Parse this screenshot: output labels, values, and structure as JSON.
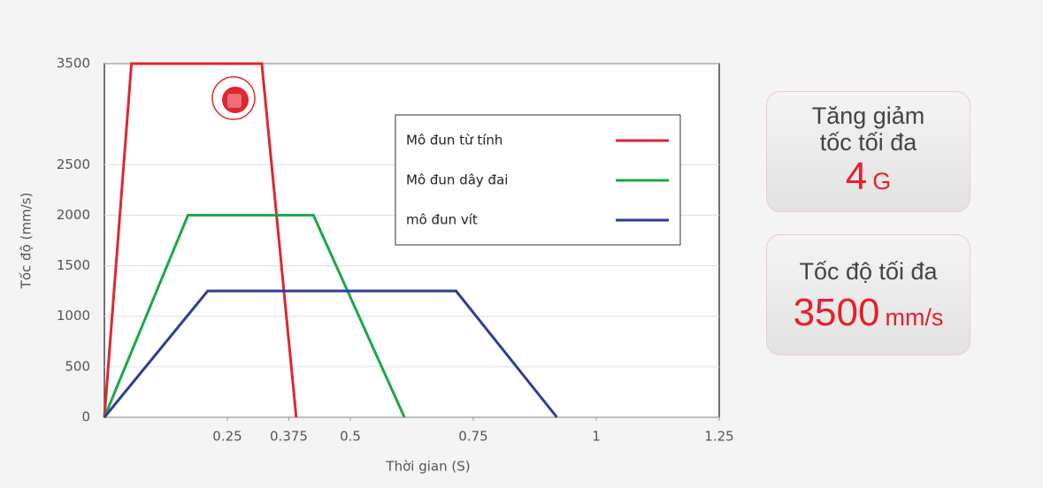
{
  "chart_data": {
    "type": "line",
    "y_label": "Tốc độ (mm/s)",
    "x_label": "Thời gian (S)",
    "xlim": [
      0,
      1.25
    ],
    "xticks": [
      0.25,
      0.375,
      0.5,
      0.75,
      1,
      1.25
    ],
    "ylim": [
      0,
      3500
    ],
    "yticks": [
      0,
      500,
      1000,
      1500,
      2000,
      2500,
      3500
    ],
    "grid": true,
    "series": [
      {
        "name": "Mô đun từ tính",
        "color": "#e0262e",
        "x": [
          0,
          0.055,
          0.32,
          0.39
        ],
        "values": [
          0,
          3500,
          3500,
          0
        ]
      },
      {
        "name": "Mô đun dây đai",
        "color": "#1ea64a",
        "x": [
          0,
          0.17,
          0.425,
          0.61
        ],
        "values": [
          0,
          2000,
          2000,
          0
        ]
      },
      {
        "name": "mô đun vít",
        "color": "#2e3d96",
        "x": [
          0,
          0.21,
          0.715,
          0.92
        ],
        "values": [
          0,
          1250,
          1250,
          0
        ]
      }
    ]
  },
  "cards": [
    {
      "lines": [
        "Tăng giảm",
        "tốc tối đa"
      ],
      "value": 4,
      "unit": "G"
    },
    {
      "lines": [
        "Tốc độ tối đa"
      ],
      "value": 3500,
      "unit": "mm/s"
    }
  ]
}
